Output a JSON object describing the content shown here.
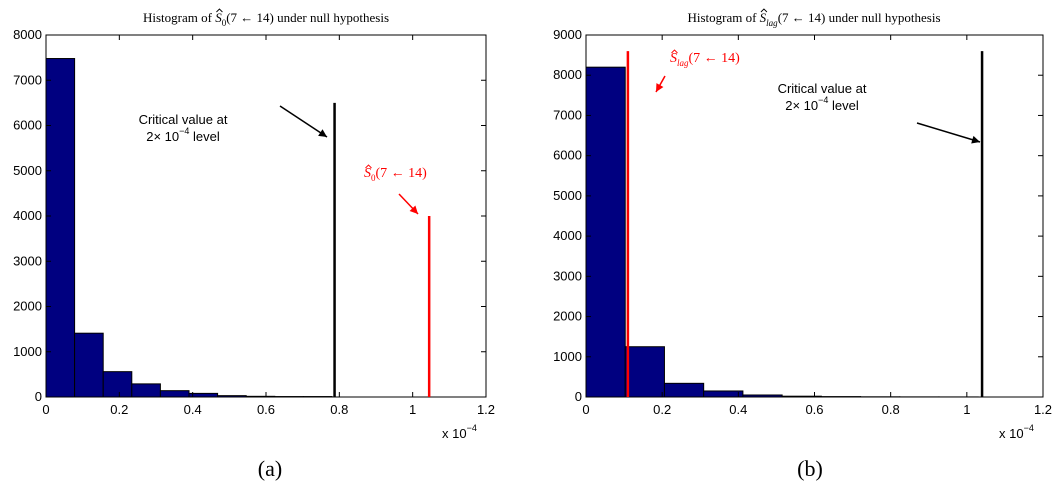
{
  "colors": {
    "bar_fill": "#000080",
    "bar_edge": "#000000",
    "critical_line": "#000000",
    "statistic_line": "#ff0000"
  },
  "chart_data": [
    {
      "type": "bar",
      "panel_label": "(a)",
      "title": {
        "prefix": "Histogram of ",
        "symbol": "S",
        "subscript": "0",
        "suffix": "(7 ← 14) under null hypothesis"
      },
      "x_multiplier": {
        "text": "x 10",
        "exponent": "−4"
      },
      "xlim": [
        0,
        1.2
      ],
      "ylim": [
        0,
        8000
      ],
      "xticks": [
        "0",
        "0.2",
        "0.4",
        "0.6",
        "0.8",
        "1",
        "1.2"
      ],
      "yticks": [
        "0",
        "1000",
        "2000",
        "3000",
        "4000",
        "5000",
        "6000",
        "7000",
        "8000"
      ],
      "xtick_values": [
        0,
        0.2,
        0.4,
        0.6,
        0.8,
        1.0,
        1.2
      ],
      "ytick_values": [
        0,
        1000,
        2000,
        3000,
        4000,
        5000,
        6000,
        7000,
        8000
      ],
      "bin_edges": [
        0,
        0.078,
        0.156,
        0.234,
        0.312,
        0.39,
        0.468,
        0.546,
        0.624,
        0.702,
        0.78
      ],
      "values": [
        7480,
        1410,
        560,
        290,
        140,
        80,
        30,
        15,
        10,
        10
      ],
      "critical_line": {
        "x": 0.787,
        "top": 6500,
        "label_lines": [
          "Critical value at"
        ],
        "level_prefix": "2× 10",
        "level_exponent": "−4",
        "level_suffix": " level"
      },
      "statistic_line": {
        "x": 1.045,
        "top": 4000,
        "symbol": "S",
        "subscript": "0",
        "suffix": "(7 ← 14)"
      }
    },
    {
      "type": "bar",
      "panel_label": "(b)",
      "title": {
        "prefix": "Histogram of ",
        "symbol": "S",
        "subscript": "lag",
        "suffix": "(7 ← 14) under null hypothesis"
      },
      "x_multiplier": {
        "text": "x 10",
        "exponent": "−4"
      },
      "xlim": [
        0,
        1.2
      ],
      "ylim": [
        0,
        9000
      ],
      "xticks": [
        "0",
        "0.2",
        "0.4",
        "0.6",
        "0.8",
        "1",
        "1.2"
      ],
      "yticks": [
        "0",
        "1000",
        "2000",
        "3000",
        "4000",
        "5000",
        "6000",
        "7000",
        "8000",
        "9000"
      ],
      "xtick_values": [
        0,
        0.2,
        0.4,
        0.6,
        0.8,
        1.0,
        1.2
      ],
      "ytick_values": [
        0,
        1000,
        2000,
        3000,
        4000,
        5000,
        6000,
        7000,
        8000,
        9000
      ],
      "bin_edges": [
        0,
        0.103,
        0.206,
        0.309,
        0.412,
        0.515,
        0.618,
        0.721,
        0.824,
        0.927,
        1.03
      ],
      "values": [
        8200,
        1250,
        340,
        150,
        50,
        20,
        10,
        5,
        3,
        2
      ],
      "critical_line": {
        "x": 1.04,
        "top": 8600,
        "label_lines": [
          "Critical value at"
        ],
        "level_prefix": "2× 10",
        "level_exponent": "−4",
        "level_suffix": " level"
      },
      "statistic_line": {
        "x": 0.11,
        "top": 8600,
        "symbol": "S",
        "subscript": "lag",
        "suffix": "(7 ← 14)"
      }
    }
  ]
}
